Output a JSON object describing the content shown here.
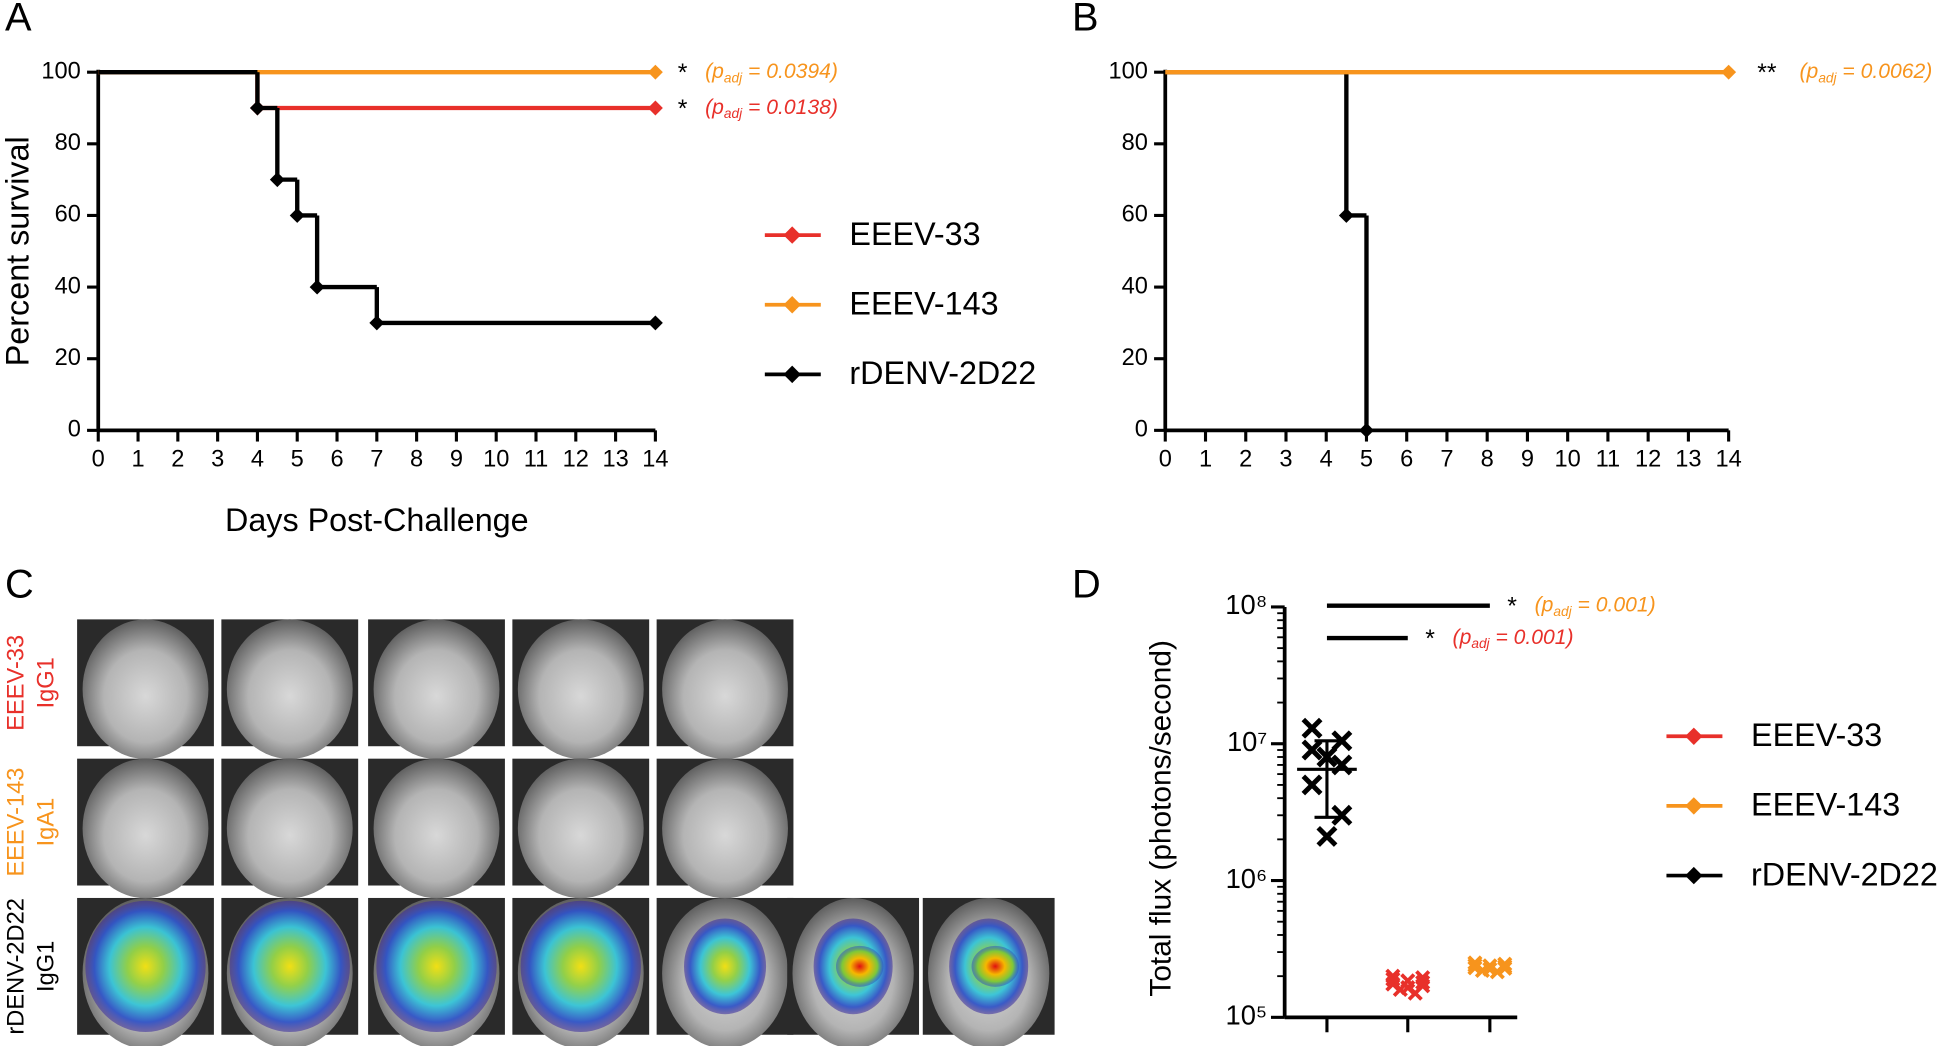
{
  "chart_data": [
    {
      "type": "line",
      "panel": "A",
      "step": true,
      "xlabel": "Days Post-Challenge",
      "ylabel": "Percent survival",
      "xlim": [
        0,
        14
      ],
      "xticks": [
        0,
        1,
        2,
        3,
        4,
        5,
        6,
        7,
        8,
        9,
        10,
        11,
        12,
        13,
        14
      ],
      "ylim": [
        0,
        100
      ],
      "yticks": [
        0,
        20,
        40,
        60,
        80,
        100
      ],
      "legend": "right",
      "series": [
        {
          "name": "EEEV-33",
          "color": "#e8302a",
          "x": [
            0,
            4,
            14
          ],
          "values": [
            100,
            90,
            90
          ],
          "annotation": {
            "star": "*",
            "prefix": "(p",
            "sub": "adj",
            "suffix": " = 0.0138)"
          }
        },
        {
          "name": "EEEV-143",
          "color": "#f7941d",
          "x": [
            0,
            14
          ],
          "values": [
            100,
            100
          ],
          "annotation": {
            "star": "*",
            "prefix": "(p",
            "sub": "adj",
            "suffix": " = 0.0394)"
          }
        },
        {
          "name": "rDENV-2D22",
          "color": "#000000",
          "x": [
            0,
            4,
            4.5,
            5,
            5.5,
            7,
            14
          ],
          "values": [
            100,
            90,
            70,
            60,
            40,
            30,
            30
          ]
        }
      ]
    },
    {
      "type": "line",
      "panel": "B",
      "step": true,
      "xlim": [
        0,
        14
      ],
      "xticks": [
        0,
        1,
        2,
        3,
        4,
        5,
        6,
        7,
        8,
        9,
        10,
        11,
        12,
        13,
        14
      ],
      "ylim": [
        0,
        100
      ],
      "yticks": [
        0,
        20,
        40,
        60,
        80,
        100
      ],
      "series": [
        {
          "color": "#000000",
          "x": [
            0,
            4.5,
            5
          ],
          "values": [
            100,
            60,
            0
          ]
        },
        {
          "color": "#f7941d",
          "x": [
            0,
            14
          ],
          "values": [
            100,
            100
          ],
          "annotation": {
            "star": "**",
            "prefix": "(p",
            "sub": "adj",
            "suffix": " = 0.0062)"
          }
        }
      ]
    },
    {
      "type": "scatter",
      "panel": "D",
      "ylabel": "Total flux (photons/second)",
      "log_y": true,
      "ylim": [
        100000,
        100000000
      ],
      "yticks": [
        {
          "value": 100000,
          "label": "10⁵"
        },
        {
          "value": 1000000,
          "label": "10⁶"
        },
        {
          "value": 10000000,
          "label": "10⁷"
        },
        {
          "value": 100000000,
          "label": "10⁸"
        }
      ],
      "categories": [
        null,
        null,
        null
      ],
      "legend": "right",
      "series": [
        {
          "name": "EEEV-33",
          "color": "#e8302a",
          "values": [
            200000,
            195000,
            190000,
            185000,
            180000,
            175000,
            170000,
            165000,
            160000,
            150000
          ],
          "annotation": {
            "star": "*",
            "prefix": "(p",
            "sub": "adj",
            "suffix": " = 0.001)"
          }
        },
        {
          "name": "EEEV-143",
          "color": "#f7941d",
          "values": [
            250000,
            245000,
            240000,
            238000,
            235000,
            230000,
            228000,
            225000,
            220000,
            215000
          ],
          "annotation": {
            "star": "*",
            "prefix": "(p",
            "sub": "adj",
            "suffix": " = 0.001)"
          }
        },
        {
          "name": "rDENV-2D22",
          "color": "#000000",
          "values": [
            13000000,
            10500000,
            9000000,
            8000000,
            7000000,
            5000000,
            3000000,
            2100000
          ],
          "mean": 6500000,
          "sd": [
            2900000,
            10500000
          ]
        }
      ]
    }
  ],
  "image_panel": {
    "panel": "C",
    "rows": [
      {
        "antibody": "EEEV-33",
        "isotype": "IgG1",
        "color": "#e8302a",
        "images": 5
      },
      {
        "antibody": "EEEV-143",
        "isotype": "IgA1",
        "color": "#f7941d",
        "images": 5
      },
      {
        "antibody": "rDENV-2D22",
        "isotype": "IgG1",
        "color": "#000000",
        "images": 7
      }
    ]
  }
}
